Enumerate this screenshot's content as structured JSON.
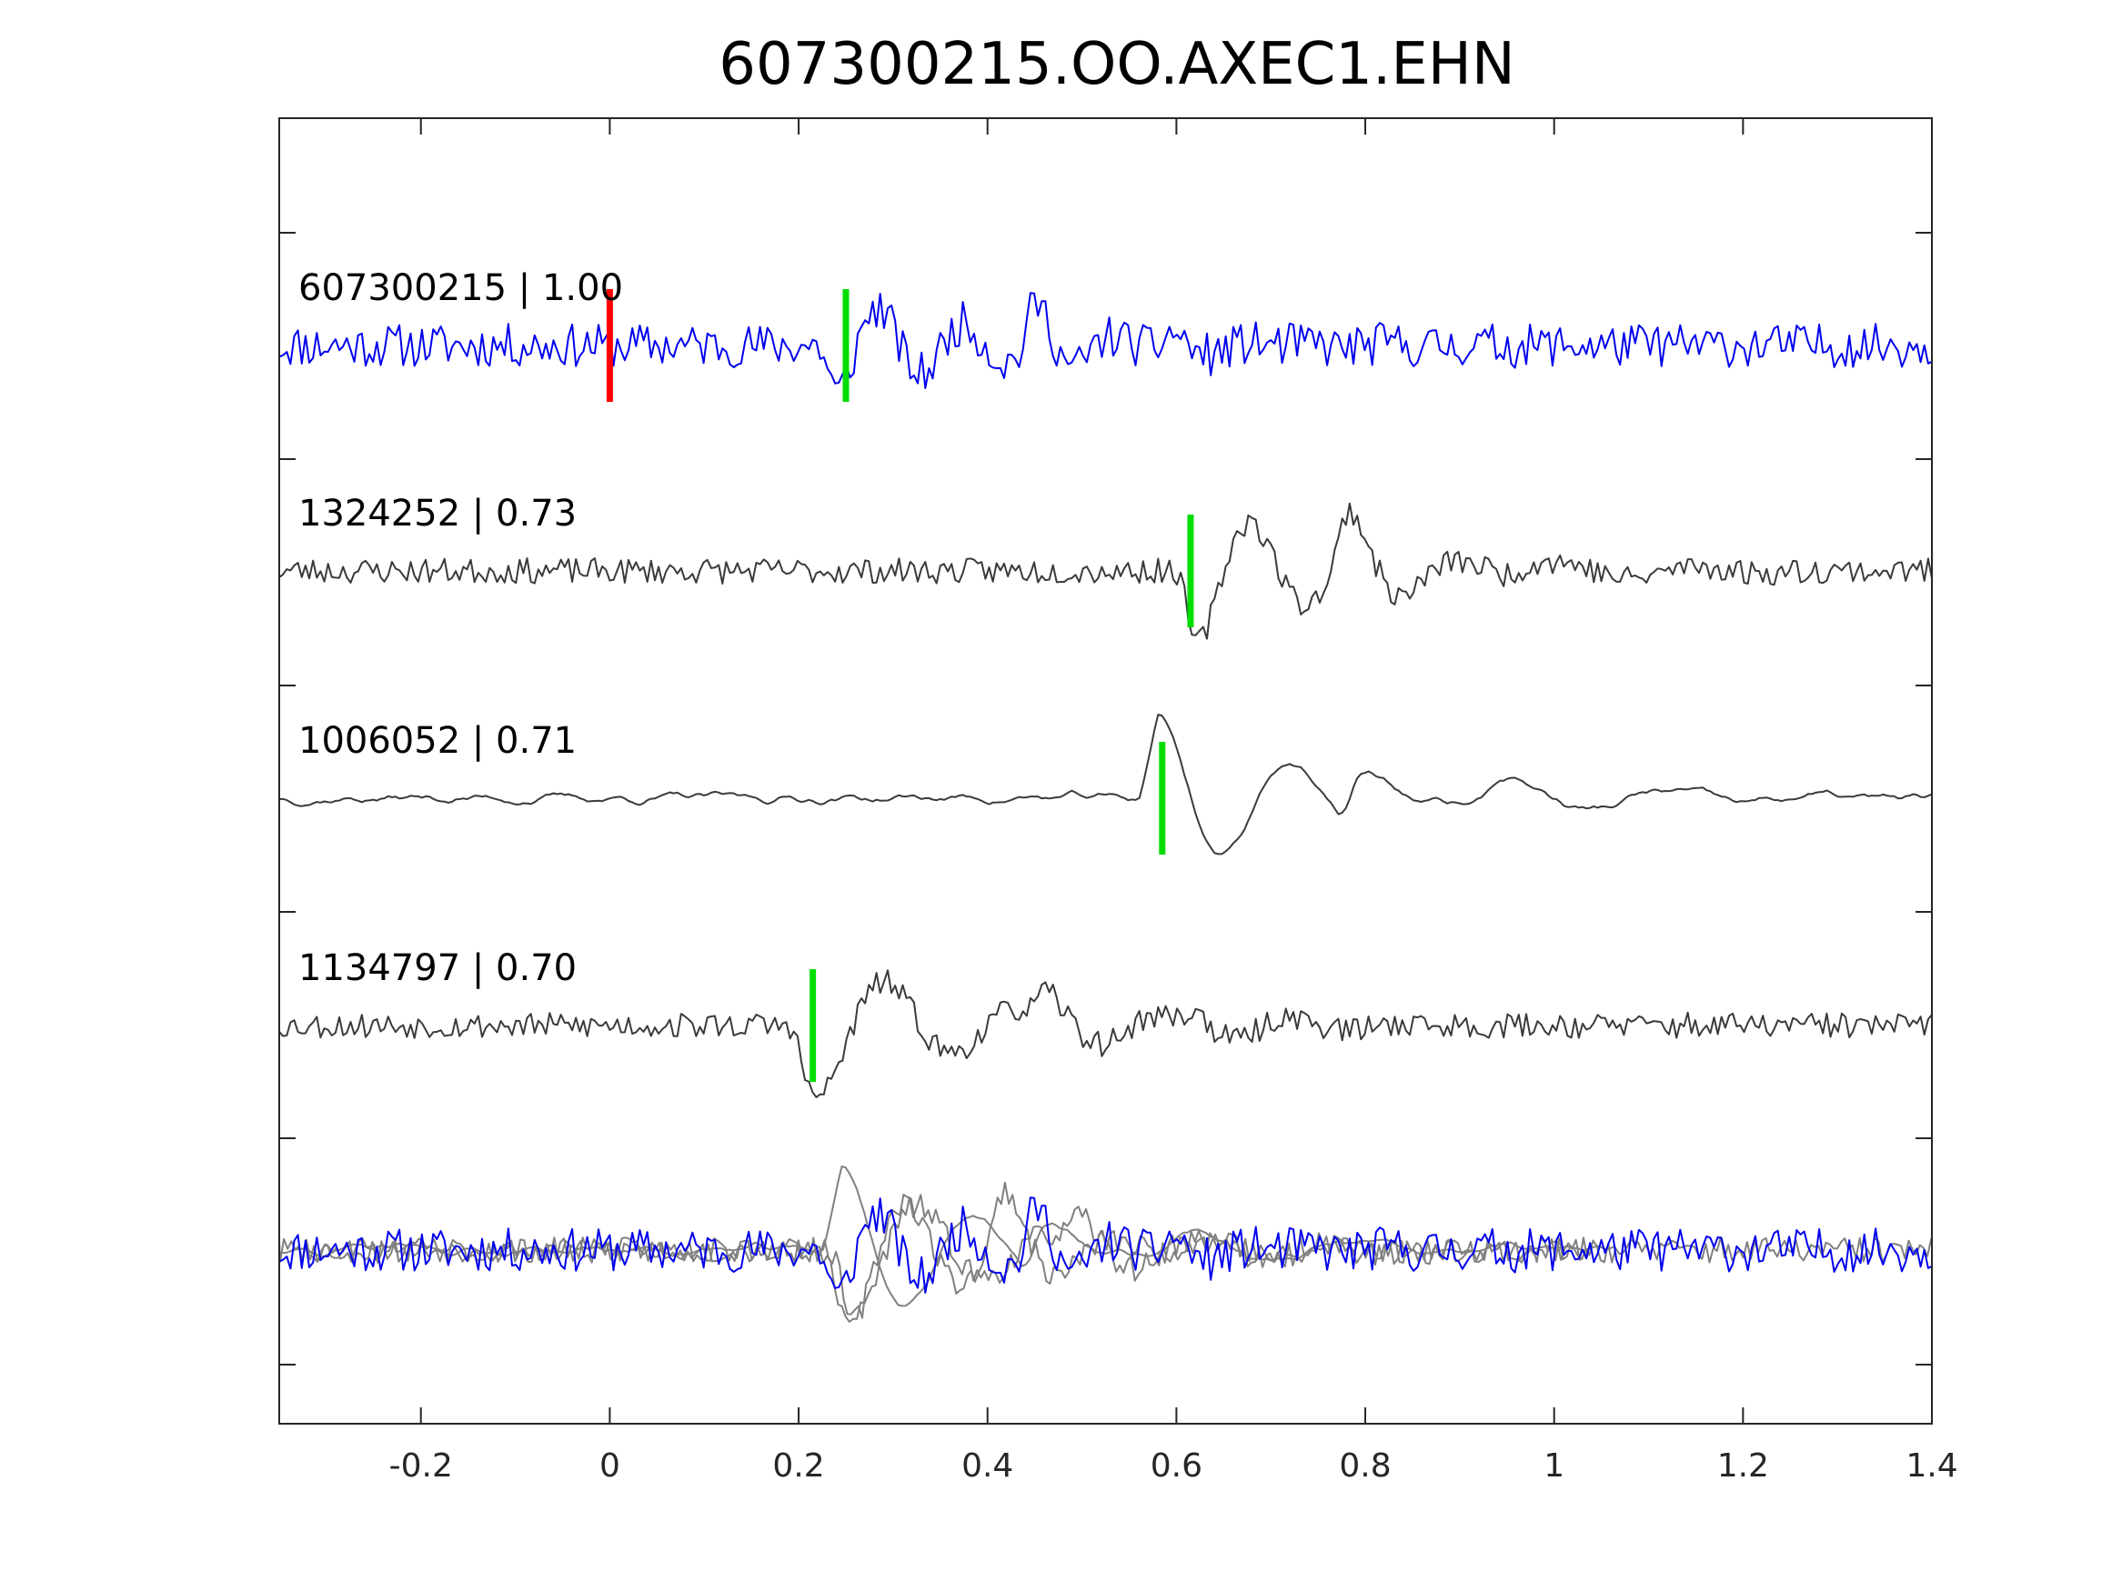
{
  "chart_data": {
    "type": "line",
    "title": "607300215.OO.AXEC1.EHN",
    "xlabel": "",
    "ylabel": "",
    "xlim": [
      -0.35,
      1.4
    ],
    "xticks": [
      -0.2,
      0,
      0.2,
      0.4,
      0.6,
      0.8,
      1,
      1.2,
      1.4
    ],
    "xtick_labels": [
      "-0.2",
      "0",
      "0.2",
      "0.4",
      "0.6",
      "0.8",
      "1",
      "1.2",
      "1.4"
    ],
    "grid": false,
    "legend": "none",
    "colors": {
      "master_trace": "#0000ee",
      "neighbor_trace": "#3a3a3a",
      "overlay_neighbor": "#808080",
      "origin_marker": "#ff0000",
      "pick_marker": "#00dd00",
      "axis": "#262626"
    },
    "series": [
      {
        "name": "607300215 | 1.00",
        "event_id": "607300215",
        "cc": 1.0,
        "role": "master",
        "pick_time": 0.25,
        "origin_time": 0.0
      },
      {
        "name": "1324252 | 0.73",
        "event_id": "1324252",
        "cc": 0.73,
        "role": "neighbor",
        "pick_time": 0.615
      },
      {
        "name": "1006052 | 0.71",
        "event_id": "1006052",
        "cc": 0.71,
        "role": "neighbor",
        "pick_time": 0.585
      },
      {
        "name": "1134797 | 0.70",
        "event_id": "1134797",
        "cc": 0.7,
        "role": "neighbor",
        "pick_time": 0.215
      }
    ],
    "overlay": {
      "description_visible": false,
      "aligned_traces": [
        "607300215",
        "1324252",
        "1006052",
        "1134797"
      ]
    }
  }
}
